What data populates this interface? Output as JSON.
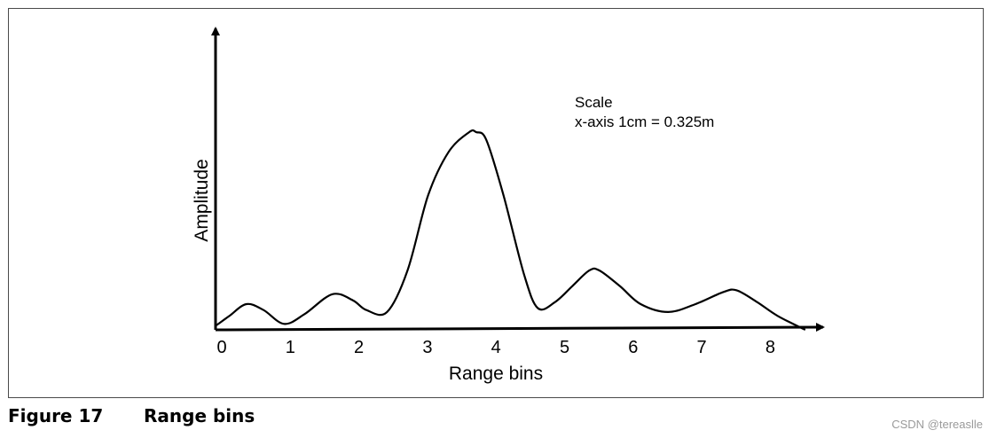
{
  "caption": {
    "number": "Figure 17",
    "title": "Range bins"
  },
  "watermark": "CSDN @tereaslle",
  "chart_data": {
    "type": "line",
    "title": "",
    "xlabel": "Range bins",
    "ylabel": "Amplitude",
    "x_ticks": [
      "0",
      "1",
      "2",
      "3",
      "4",
      "5",
      "6",
      "7",
      "8"
    ],
    "xlim": [
      0,
      8.6
    ],
    "ylim": [
      0,
      1
    ],
    "grid": false,
    "legend": "none",
    "annotations": [
      "Scale",
      "x-axis 1cm = 0.325m"
    ],
    "series": [
      {
        "color": "#000000",
        "x": [
          0.0,
          0.2,
          0.45,
          0.7,
          1.0,
          1.3,
          1.7,
          2.0,
          2.2,
          2.5,
          2.8,
          3.1,
          3.4,
          3.7,
          3.8,
          3.95,
          4.2,
          4.5,
          4.7,
          4.95,
          5.2,
          5.45,
          5.6,
          5.9,
          6.2,
          6.6,
          7.0,
          7.4,
          7.6,
          7.9,
          8.2,
          8.6
        ],
        "y": [
          0.02,
          0.07,
          0.13,
          0.1,
          0.03,
          0.08,
          0.18,
          0.15,
          0.1,
          0.09,
          0.3,
          0.68,
          0.9,
          1.0,
          1.0,
          0.96,
          0.68,
          0.28,
          0.11,
          0.14,
          0.22,
          0.3,
          0.3,
          0.22,
          0.13,
          0.09,
          0.13,
          0.19,
          0.2,
          0.14,
          0.07,
          0.0
        ]
      }
    ]
  }
}
